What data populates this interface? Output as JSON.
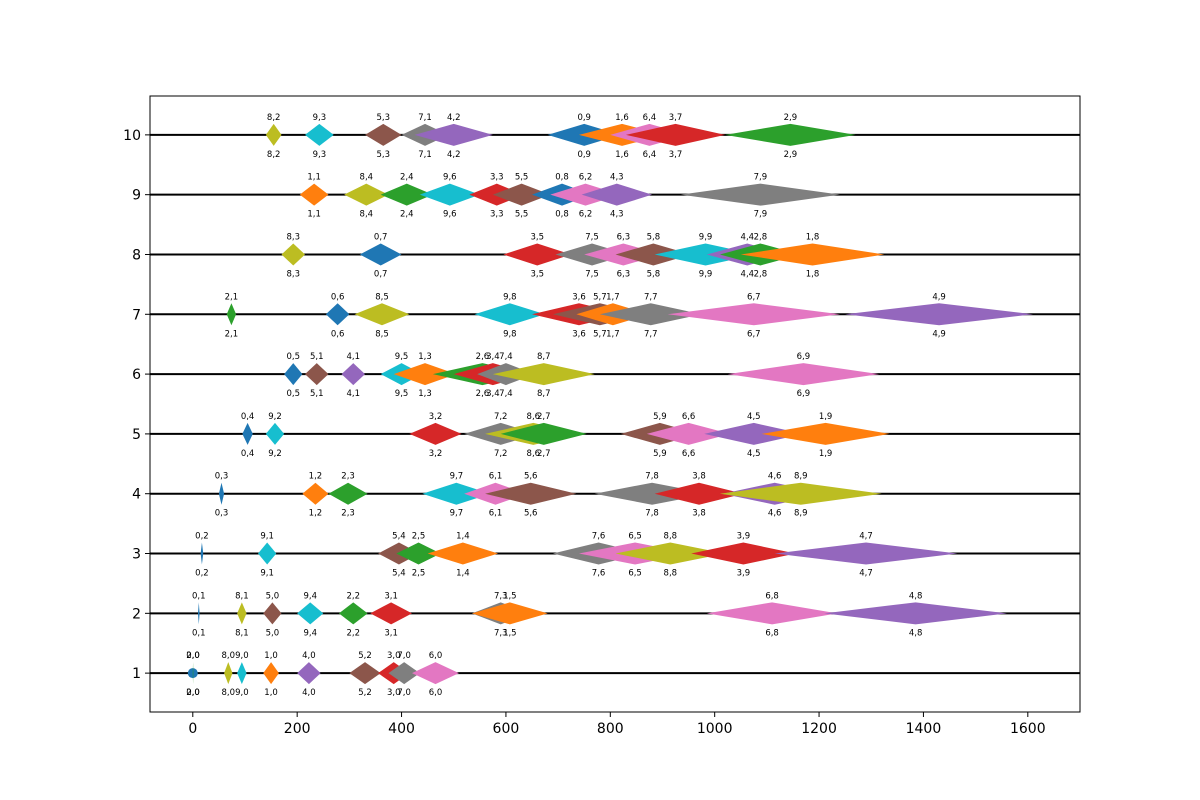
{
  "chart_data": {
    "type": "scatter",
    "title": "",
    "xlabel": "",
    "ylabel": "",
    "xlim": [
      -82,
      1700
    ],
    "ylim": [
      0.35,
      10.65
    ],
    "x_ticks": [
      0,
      200,
      400,
      600,
      800,
      1000,
      1200,
      1400,
      1600
    ],
    "y_ticks": [
      1,
      2,
      3,
      4,
      5,
      6,
      7,
      8,
      9,
      10
    ],
    "grid": false,
    "legend": "none",
    "marker": "diamond",
    "line_color": "#000000",
    "colors": [
      "#1f77b4",
      "#ff7f0e",
      "#2ca02c",
      "#d62728",
      "#9467bd",
      "#8c564b",
      "#e377c2",
      "#7f7f7f",
      "#bcbd22",
      "#17becf"
    ],
    "points": [
      {
        "label": "0,0",
        "level": 1,
        "x": 0,
        "w": 1,
        "g": 0
      },
      {
        "label": "2,0",
        "level": 1,
        "x": 0,
        "w": 1,
        "g": 2
      },
      {
        "label": "8,0",
        "level": 1,
        "x": 60,
        "w": 16,
        "g": 8
      },
      {
        "label": "9,0",
        "level": 1,
        "x": 85,
        "w": 18,
        "g": 9
      },
      {
        "label": "1,0",
        "level": 1,
        "x": 135,
        "w": 30,
        "g": 1
      },
      {
        "label": "4,0",
        "level": 1,
        "x": 200,
        "w": 45,
        "g": 4
      },
      {
        "label": "5,2",
        "level": 1,
        "x": 300,
        "w": 60,
        "g": 5
      },
      {
        "label": "3,0",
        "level": 1,
        "x": 355,
        "w": 60,
        "g": 3
      },
      {
        "label": "7,0",
        "level": 1,
        "x": 375,
        "w": 60,
        "g": 7
      },
      {
        "label": "6,0",
        "level": 1,
        "x": 420,
        "w": 90,
        "g": 6
      },
      {
        "label": "0,1",
        "level": 2,
        "x": 10,
        "w": 3,
        "g": 0
      },
      {
        "label": "8,1",
        "level": 2,
        "x": 85,
        "w": 18,
        "g": 8
      },
      {
        "label": "5,0",
        "level": 2,
        "x": 135,
        "w": 35,
        "g": 5
      },
      {
        "label": "9,4",
        "level": 2,
        "x": 200,
        "w": 50,
        "g": 9
      },
      {
        "label": "2,2",
        "level": 2,
        "x": 280,
        "w": 55,
        "g": 2
      },
      {
        "label": "3,1",
        "level": 2,
        "x": 340,
        "w": 80,
        "g": 3
      },
      {
        "label": "7,3",
        "level": 2,
        "x": 535,
        "w": 110,
        "g": 7
      },
      {
        "label": "1,5",
        "level": 2,
        "x": 535,
        "w": 145,
        "g": 1
      },
      {
        "label": "6,8",
        "level": 2,
        "x": 985,
        "w": 250,
        "g": 6
      },
      {
        "label": "4,8",
        "level": 2,
        "x": 1210,
        "w": 350,
        "g": 4
      },
      {
        "label": "0,2",
        "level": 3,
        "x": 15,
        "w": 5,
        "g": 0
      },
      {
        "label": "9,1",
        "level": 3,
        "x": 125,
        "w": 35,
        "g": 9
      },
      {
        "label": "5,4",
        "level": 3,
        "x": 355,
        "w": 80,
        "g": 5
      },
      {
        "label": "2,5",
        "level": 3,
        "x": 390,
        "w": 85,
        "g": 2
      },
      {
        "label": "1,4",
        "level": 3,
        "x": 450,
        "w": 135,
        "g": 1
      },
      {
        "label": "7,6",
        "level": 3,
        "x": 690,
        "w": 175,
        "g": 7
      },
      {
        "label": "6,5",
        "level": 3,
        "x": 740,
        "w": 215,
        "g": 6
      },
      {
        "label": "8,8",
        "level": 3,
        "x": 810,
        "w": 210,
        "g": 8
      },
      {
        "label": "3,9",
        "level": 3,
        "x": 955,
        "w": 200,
        "g": 3
      },
      {
        "label": "4,7",
        "level": 3,
        "x": 1115,
        "w": 350,
        "g": 4
      },
      {
        "label": "0,3",
        "level": 4,
        "x": 50,
        "w": 10,
        "g": 0
      },
      {
        "label": "1,2",
        "level": 4,
        "x": 210,
        "w": 50,
        "g": 1
      },
      {
        "label": "2,3",
        "level": 4,
        "x": 260,
        "w": 75,
        "g": 2
      },
      {
        "label": "9,7",
        "level": 4,
        "x": 440,
        "w": 130,
        "g": 9
      },
      {
        "label": "6,1",
        "level": 4,
        "x": 520,
        "w": 120,
        "g": 6
      },
      {
        "label": "5,6",
        "level": 4,
        "x": 560,
        "w": 175,
        "g": 5
      },
      {
        "label": "7,8",
        "level": 4,
        "x": 770,
        "w": 220,
        "g": 7
      },
      {
        "label": "3,8",
        "level": 4,
        "x": 885,
        "w": 170,
        "g": 3
      },
      {
        "label": "4,6",
        "level": 4,
        "x": 1015,
        "w": 200,
        "g": 4
      },
      {
        "label": "8,9",
        "level": 4,
        "x": 1010,
        "w": 310,
        "g": 8
      },
      {
        "label": "0,4",
        "level": 5,
        "x": 95,
        "w": 20,
        "g": 0
      },
      {
        "label": "9,2",
        "level": 5,
        "x": 140,
        "w": 35,
        "g": 9
      },
      {
        "label": "3,2",
        "level": 5,
        "x": 415,
        "w": 100,
        "g": 3
      },
      {
        "label": "7,2",
        "level": 5,
        "x": 520,
        "w": 140,
        "g": 7
      },
      {
        "label": "8,6",
        "level": 5,
        "x": 560,
        "w": 185,
        "g": 8
      },
      {
        "label": "2,7",
        "level": 5,
        "x": 590,
        "w": 165,
        "g": 2
      },
      {
        "label": "5,9",
        "level": 5,
        "x": 820,
        "w": 150,
        "g": 5
      },
      {
        "label": "6,6",
        "level": 5,
        "x": 870,
        "w": 160,
        "g": 6
      },
      {
        "label": "4,5",
        "level": 5,
        "x": 980,
        "w": 190,
        "g": 4
      },
      {
        "label": "1,9",
        "level": 5,
        "x": 1090,
        "w": 245,
        "g": 1
      },
      {
        "label": "0,5",
        "level": 6,
        "x": 175,
        "w": 35,
        "g": 0
      },
      {
        "label": "5,1",
        "level": 6,
        "x": 215,
        "w": 45,
        "g": 5
      },
      {
        "label": "4,1",
        "level": 6,
        "x": 285,
        "w": 45,
        "g": 4
      },
      {
        "label": "9,5",
        "level": 6,
        "x": 360,
        "w": 80,
        "g": 9
      },
      {
        "label": "1,3",
        "level": 6,
        "x": 385,
        "w": 120,
        "g": 1
      },
      {
        "label": "2,6",
        "level": 6,
        "x": 460,
        "w": 190,
        "g": 2
      },
      {
        "label": "3,4",
        "level": 6,
        "x": 500,
        "w": 150,
        "g": 3
      },
      {
        "label": "7,4",
        "level": 6,
        "x": 545,
        "w": 110,
        "g": 7
      },
      {
        "label": "8,7",
        "level": 6,
        "x": 575,
        "w": 195,
        "g": 8
      },
      {
        "label": "6,9",
        "level": 6,
        "x": 1025,
        "w": 290,
        "g": 6
      },
      {
        "label": "2,1",
        "level": 7,
        "x": 65,
        "w": 18,
        "g": 2
      },
      {
        "label": "0,6",
        "level": 7,
        "x": 255,
        "w": 45,
        "g": 0
      },
      {
        "label": "8,5",
        "level": 7,
        "x": 310,
        "w": 105,
        "g": 8
      },
      {
        "label": "9,8",
        "level": 7,
        "x": 540,
        "w": 135,
        "g": 9
      },
      {
        "label": "3,6",
        "level": 7,
        "x": 650,
        "w": 180,
        "g": 3
      },
      {
        "label": "5,7",
        "level": 7,
        "x": 690,
        "w": 180,
        "g": 5
      },
      {
        "label": "1,7",
        "level": 7,
        "x": 735,
        "w": 140,
        "g": 1
      },
      {
        "label": "7,7",
        "level": 7,
        "x": 780,
        "w": 195,
        "g": 7
      },
      {
        "label": "6,7",
        "level": 7,
        "x": 910,
        "w": 330,
        "g": 6
      },
      {
        "label": "4,9",
        "level": 7,
        "x": 1250,
        "w": 360,
        "g": 4
      },
      {
        "label": "8,3",
        "level": 8,
        "x": 170,
        "w": 45,
        "g": 8
      },
      {
        "label": "0,7",
        "level": 8,
        "x": 320,
        "w": 80,
        "g": 0
      },
      {
        "label": "3,5",
        "level": 8,
        "x": 595,
        "w": 130,
        "g": 3
      },
      {
        "label": "7,5",
        "level": 8,
        "x": 695,
        "w": 140,
        "g": 7
      },
      {
        "label": "6,3",
        "level": 8,
        "x": 750,
        "w": 150,
        "g": 6
      },
      {
        "label": "5,8",
        "level": 8,
        "x": 810,
        "w": 145,
        "g": 5
      },
      {
        "label": "9,9",
        "level": 8,
        "x": 885,
        "w": 195,
        "g": 9
      },
      {
        "label": "4,4",
        "level": 8,
        "x": 985,
        "w": 155,
        "g": 4
      },
      {
        "label": "2,8",
        "level": 8,
        "x": 1010,
        "w": 155,
        "g": 2
      },
      {
        "label": "1,8",
        "level": 8,
        "x": 1050,
        "w": 275,
        "g": 1
      },
      {
        "label": "1,1",
        "level": 9,
        "x": 205,
        "w": 55,
        "g": 1
      },
      {
        "label": "8,4",
        "level": 9,
        "x": 290,
        "w": 85,
        "g": 8
      },
      {
        "label": "2,4",
        "level": 9,
        "x": 360,
        "w": 100,
        "g": 2
      },
      {
        "label": "9,6",
        "level": 9,
        "x": 435,
        "w": 115,
        "g": 9
      },
      {
        "label": "3,3",
        "level": 9,
        "x": 530,
        "w": 105,
        "g": 3
      },
      {
        "label": "5,5",
        "level": 9,
        "x": 575,
        "w": 110,
        "g": 5
      },
      {
        "label": "0,8",
        "level": 9,
        "x": 650,
        "w": 115,
        "g": 0
      },
      {
        "label": "6,2",
        "level": 9,
        "x": 685,
        "w": 135,
        "g": 6
      },
      {
        "label": "4,3",
        "level": 9,
        "x": 745,
        "w": 135,
        "g": 4
      },
      {
        "label": "7,9",
        "level": 9,
        "x": 935,
        "w": 305,
        "g": 7
      },
      {
        "label": "8,2",
        "level": 10,
        "x": 140,
        "w": 30,
        "g": 8
      },
      {
        "label": "9,3",
        "level": 10,
        "x": 215,
        "w": 55,
        "g": 9
      },
      {
        "label": "5,3",
        "level": 10,
        "x": 330,
        "w": 70,
        "g": 5
      },
      {
        "label": "7,1",
        "level": 10,
        "x": 400,
        "w": 90,
        "g": 7
      },
      {
        "label": "4,2",
        "level": 10,
        "x": 425,
        "w": 150,
        "g": 4
      },
      {
        "label": "0,9",
        "level": 10,
        "x": 680,
        "w": 140,
        "g": 0
      },
      {
        "label": "1,6",
        "level": 10,
        "x": 740,
        "w": 165,
        "g": 1
      },
      {
        "label": "6,4",
        "level": 10,
        "x": 800,
        "w": 150,
        "g": 6
      },
      {
        "label": "3,7",
        "level": 10,
        "x": 830,
        "w": 190,
        "g": 3
      },
      {
        "label": "2,9",
        "level": 10,
        "x": 1020,
        "w": 250,
        "g": 2
      }
    ]
  }
}
